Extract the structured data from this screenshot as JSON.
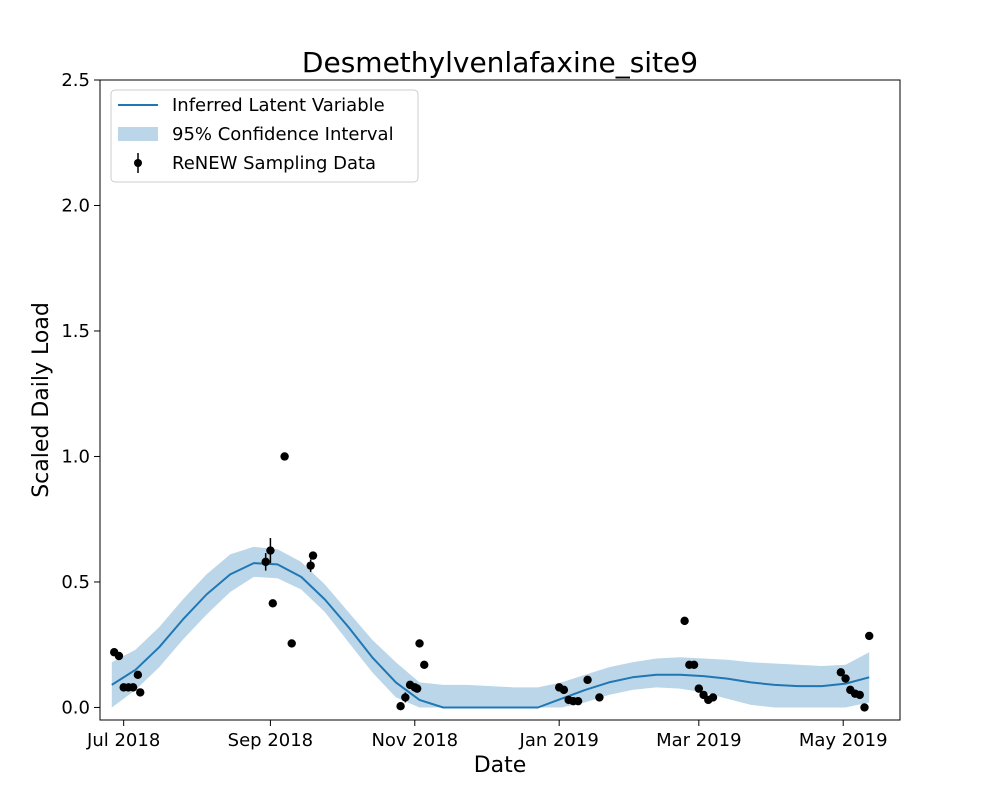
{
  "chart_data": {
    "type": "line",
    "title": "Desmethylvenlafaxine_site9",
    "xlabel": "Date",
    "ylabel": "Scaled Daily Load",
    "xlim": [
      "2018-06-21",
      "2019-05-25"
    ],
    "ylim": [
      -0.05,
      2.5
    ],
    "x_ticks": [
      {
        "date": "2018-07-01",
        "label": "Jul 2018"
      },
      {
        "date": "2018-09-01",
        "label": "Sep 2018"
      },
      {
        "date": "2018-11-01",
        "label": "Nov 2018"
      },
      {
        "date": "2019-01-01",
        "label": "Jan 2019"
      },
      {
        "date": "2019-03-01",
        "label": "Mar 2019"
      },
      {
        "date": "2019-05-01",
        "label": "May 2019"
      }
    ],
    "y_ticks": [
      {
        "value": 0.0,
        "label": "0.0"
      },
      {
        "value": 0.5,
        "label": "0.5"
      },
      {
        "value": 1.0,
        "label": "1.0"
      },
      {
        "value": 1.5,
        "label": "1.5"
      },
      {
        "value": 2.0,
        "label": "2.0"
      },
      {
        "value": 2.5,
        "label": "2.5"
      }
    ],
    "grid": false,
    "legend_position": "top-left",
    "colors": {
      "line": "#1f77b4",
      "band": "#1f77b4",
      "points": "#000000"
    },
    "series": [
      {
        "name": "Inferred Latent Variable",
        "type": "line",
        "x": [
          "2018-06-26",
          "2018-07-06",
          "2018-07-16",
          "2018-07-26",
          "2018-08-05",
          "2018-08-15",
          "2018-08-25",
          "2018-09-04",
          "2018-09-14",
          "2018-09-24",
          "2018-10-04",
          "2018-10-14",
          "2018-10-24",
          "2018-11-03",
          "2018-11-13",
          "2018-11-23",
          "2018-12-03",
          "2018-12-13",
          "2018-12-23",
          "2019-01-02",
          "2019-01-12",
          "2019-01-22",
          "2019-02-01",
          "2019-02-11",
          "2019-02-21",
          "2019-03-03",
          "2019-03-13",
          "2019-03-23",
          "2019-04-02",
          "2019-04-12",
          "2019-04-22",
          "2019-05-02",
          "2019-05-12"
        ],
        "y": [
          0.09,
          0.15,
          0.24,
          0.35,
          0.45,
          0.53,
          0.575,
          0.57,
          0.52,
          0.43,
          0.32,
          0.2,
          0.1,
          0.03,
          0.0,
          0.0,
          0.0,
          0.0,
          0.0,
          0.035,
          0.07,
          0.1,
          0.12,
          0.13,
          0.13,
          0.125,
          0.115,
          0.1,
          0.09,
          0.085,
          0.085,
          0.095,
          0.12
        ]
      },
      {
        "name": "95% Confidence Interval",
        "type": "band",
        "x": [
          "2018-06-26",
          "2018-07-06",
          "2018-07-16",
          "2018-07-26",
          "2018-08-05",
          "2018-08-15",
          "2018-08-25",
          "2018-09-04",
          "2018-09-14",
          "2018-09-24",
          "2018-10-04",
          "2018-10-14",
          "2018-10-24",
          "2018-11-03",
          "2018-11-13",
          "2018-11-23",
          "2018-12-03",
          "2018-12-13",
          "2018-12-23",
          "2019-01-02",
          "2019-01-12",
          "2019-01-22",
          "2019-02-01",
          "2019-02-11",
          "2019-02-21",
          "2019-03-03",
          "2019-03-13",
          "2019-03-23",
          "2019-04-02",
          "2019-04-12",
          "2019-04-22",
          "2019-05-02",
          "2019-05-12"
        ],
        "lower": [
          0.0,
          0.07,
          0.16,
          0.27,
          0.37,
          0.46,
          0.52,
          0.515,
          0.47,
          0.38,
          0.26,
          0.14,
          0.04,
          0.0,
          0.0,
          0.0,
          0.0,
          0.0,
          0.0,
          0.0,
          0.02,
          0.05,
          0.07,
          0.08,
          0.075,
          0.06,
          0.035,
          0.01,
          0.0,
          0.0,
          0.0,
          0.0,
          0.02
        ],
        "upper": [
          0.18,
          0.23,
          0.32,
          0.43,
          0.53,
          0.61,
          0.64,
          0.63,
          0.58,
          0.49,
          0.38,
          0.27,
          0.18,
          0.1,
          0.09,
          0.09,
          0.085,
          0.08,
          0.08,
          0.1,
          0.13,
          0.16,
          0.18,
          0.195,
          0.2,
          0.195,
          0.19,
          0.18,
          0.175,
          0.17,
          0.165,
          0.17,
          0.22
        ]
      },
      {
        "name": "ReNEW Sampling Data",
        "type": "scatter",
        "x": [
          "2018-06-27",
          "2018-06-29",
          "2018-07-01",
          "2018-07-03",
          "2018-07-05",
          "2018-07-07",
          "2018-07-08",
          "2018-08-30",
          "2018-09-01",
          "2018-09-02",
          "2018-09-07",
          "2018-09-10",
          "2018-09-18",
          "2018-09-19",
          "2018-10-26",
          "2018-10-28",
          "2018-10-30",
          "2018-11-01",
          "2018-11-02",
          "2018-11-03",
          "2018-11-05",
          "2019-01-01",
          "2019-01-03",
          "2019-01-05",
          "2019-01-07",
          "2019-01-09",
          "2019-01-13",
          "2019-01-18",
          "2019-02-23",
          "2019-02-25",
          "2019-02-27",
          "2019-03-01",
          "2019-03-03",
          "2019-03-05",
          "2019-03-07",
          "2019-04-30",
          "2019-05-02",
          "2019-05-04",
          "2019-05-06",
          "2019-05-08",
          "2019-05-10",
          "2019-05-12"
        ],
        "y": [
          0.22,
          0.205,
          0.08,
          0.08,
          0.08,
          0.13,
          0.06,
          0.58,
          0.625,
          0.415,
          1.0,
          0.255,
          0.565,
          0.605,
          0.005,
          0.04,
          0.09,
          0.08,
          0.075,
          0.255,
          0.17,
          0.08,
          0.07,
          0.03,
          0.025,
          0.025,
          0.11,
          0.04,
          0.345,
          0.17,
          0.17,
          0.075,
          0.05,
          0.03,
          0.04,
          0.14,
          0.115,
          0.07,
          0.055,
          0.05,
          0.0,
          0.285
        ],
        "yerr": [
          0.015,
          0.01,
          0.005,
          0.005,
          0.005,
          0.01,
          0.005,
          0.035,
          0.05,
          0.01,
          0.01,
          0.01,
          0.025,
          0.015,
          0.005,
          0.02,
          0.005,
          0.005,
          0.005,
          0.005,
          0.005,
          0.005,
          0.005,
          0.005,
          0.005,
          0.005,
          0.005,
          0.005,
          0.005,
          0.005,
          0.005,
          0.005,
          0.005,
          0.005,
          0.005,
          0.005,
          0.005,
          0.005,
          0.005,
          0.005,
          0.005,
          0.005
        ]
      }
    ]
  }
}
